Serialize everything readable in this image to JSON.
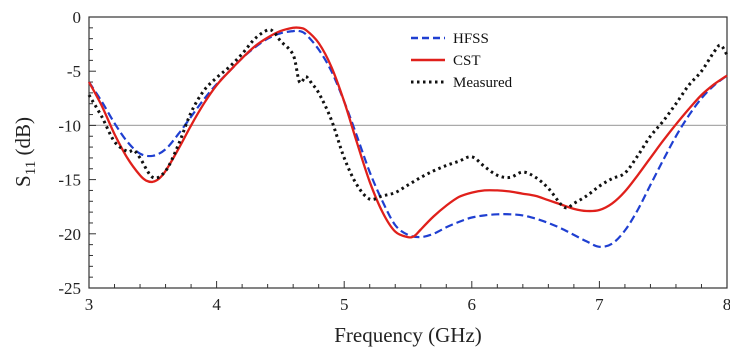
{
  "chart_data": {
    "type": "line",
    "title": "",
    "xlabel": "Frequency (GHz)",
    "ylabel_main": "S",
    "ylabel_sub": "11",
    "ylabel_unit": " (dB)",
    "xlim": [
      3,
      8
    ],
    "ylim": [
      -25,
      0
    ],
    "xticks": [
      3,
      4,
      5,
      6,
      7,
      8
    ],
    "yticks": [
      0,
      -5,
      -10,
      -15,
      -20,
      -25
    ],
    "reference_line": -10,
    "legend_position": "top-right",
    "series": [
      {
        "name": "HFSS",
        "color": "#1f3fd1",
        "style": "dashed",
        "x": [
          3.0,
          3.1,
          3.2,
          3.3,
          3.4,
          3.5,
          3.6,
          3.7,
          3.8,
          3.9,
          4.0,
          4.1,
          4.2,
          4.3,
          4.4,
          4.5,
          4.6,
          4.65,
          4.7,
          4.8,
          4.9,
          5.0,
          5.1,
          5.2,
          5.3,
          5.4,
          5.5,
          5.6,
          5.7,
          5.8,
          5.9,
          6.0,
          6.1,
          6.2,
          6.3,
          6.4,
          6.5,
          6.6,
          6.7,
          6.8,
          6.9,
          7.0,
          7.1,
          7.2,
          7.3,
          7.4,
          7.5,
          7.6,
          7.7,
          7.8,
          7.9,
          8.0
        ],
        "y": [
          -6.0,
          -7.8,
          -9.8,
          -11.5,
          -12.6,
          -12.8,
          -12.2,
          -10.8,
          -9.2,
          -7.6,
          -6.2,
          -5.0,
          -3.8,
          -2.8,
          -2.0,
          -1.5,
          -1.3,
          -1.3,
          -1.6,
          -3.0,
          -5.0,
          -7.8,
          -11.0,
          -14.3,
          -17.0,
          -19.2,
          -20.1,
          -20.3,
          -20.0,
          -19.4,
          -18.9,
          -18.5,
          -18.3,
          -18.2,
          -18.2,
          -18.3,
          -18.6,
          -19.0,
          -19.5,
          -20.1,
          -20.7,
          -21.2,
          -20.9,
          -19.7,
          -17.8,
          -15.5,
          -13.2,
          -11.0,
          -9.1,
          -7.5,
          -6.3,
          -5.4
        ]
      },
      {
        "name": "CST",
        "color": "#e0201b",
        "style": "solid",
        "x": [
          3.0,
          3.1,
          3.2,
          3.3,
          3.4,
          3.45,
          3.5,
          3.55,
          3.6,
          3.7,
          3.8,
          3.9,
          4.0,
          4.1,
          4.2,
          4.3,
          4.4,
          4.5,
          4.6,
          4.65,
          4.7,
          4.8,
          4.9,
          5.0,
          5.1,
          5.2,
          5.3,
          5.4,
          5.5,
          5.55,
          5.6,
          5.7,
          5.8,
          5.9,
          6.0,
          6.1,
          6.2,
          6.3,
          6.4,
          6.5,
          6.6,
          6.7,
          6.8,
          6.9,
          7.0,
          7.1,
          7.2,
          7.3,
          7.4,
          7.5,
          7.6,
          7.7,
          7.8,
          7.9,
          8.0
        ],
        "y": [
          -6.0,
          -8.2,
          -10.8,
          -13.0,
          -14.6,
          -15.1,
          -15.2,
          -14.9,
          -14.2,
          -12.2,
          -10.0,
          -8.0,
          -6.3,
          -5.0,
          -3.8,
          -2.7,
          -1.9,
          -1.3,
          -1.0,
          -1.0,
          -1.2,
          -2.4,
          -4.6,
          -7.8,
          -11.6,
          -15.2,
          -18.0,
          -19.8,
          -20.3,
          -20.2,
          -19.6,
          -18.4,
          -17.4,
          -16.6,
          -16.2,
          -16.0,
          -16.0,
          -16.1,
          -16.3,
          -16.5,
          -16.9,
          -17.3,
          -17.7,
          -17.9,
          -17.8,
          -17.2,
          -16.1,
          -14.6,
          -13.0,
          -11.4,
          -9.9,
          -8.5,
          -7.2,
          -6.2,
          -5.4
        ]
      },
      {
        "name": "Measured",
        "color": "#111111",
        "style": "dotted",
        "x": [
          3.0,
          3.1,
          3.2,
          3.3,
          3.35,
          3.4,
          3.5,
          3.6,
          3.7,
          3.8,
          3.9,
          4.0,
          4.1,
          4.2,
          4.3,
          4.4,
          4.45,
          4.5,
          4.6,
          4.65,
          4.7,
          4.75,
          4.8,
          4.9,
          5.0,
          5.1,
          5.2,
          5.3,
          5.4,
          5.5,
          5.6,
          5.7,
          5.8,
          5.9,
          6.0,
          6.1,
          6.2,
          6.3,
          6.4,
          6.5,
          6.6,
          6.7,
          6.75,
          6.8,
          6.9,
          7.0,
          7.1,
          7.2,
          7.3,
          7.4,
          7.5,
          7.6,
          7.7,
          7.8,
          7.9,
          7.95,
          8.0
        ],
        "y": [
          -7.2,
          -9.2,
          -11.5,
          -12.4,
          -12.3,
          -13.0,
          -14.8,
          -14.2,
          -11.8,
          -8.8,
          -6.8,
          -5.6,
          -4.6,
          -3.4,
          -2.0,
          -1.2,
          -1.4,
          -2.2,
          -3.5,
          -6.0,
          -5.5,
          -6.2,
          -7.0,
          -9.5,
          -13.0,
          -15.5,
          -16.8,
          -16.5,
          -16.2,
          -15.5,
          -14.8,
          -14.2,
          -13.7,
          -13.3,
          -12.9,
          -13.8,
          -14.6,
          -14.8,
          -14.3,
          -14.8,
          -15.8,
          -17.3,
          -17.6,
          -17.2,
          -16.5,
          -15.6,
          -14.9,
          -14.4,
          -12.8,
          -11.0,
          -9.6,
          -8.0,
          -6.3,
          -5.0,
          -3.2,
          -2.6,
          -3.5
        ]
      }
    ]
  }
}
